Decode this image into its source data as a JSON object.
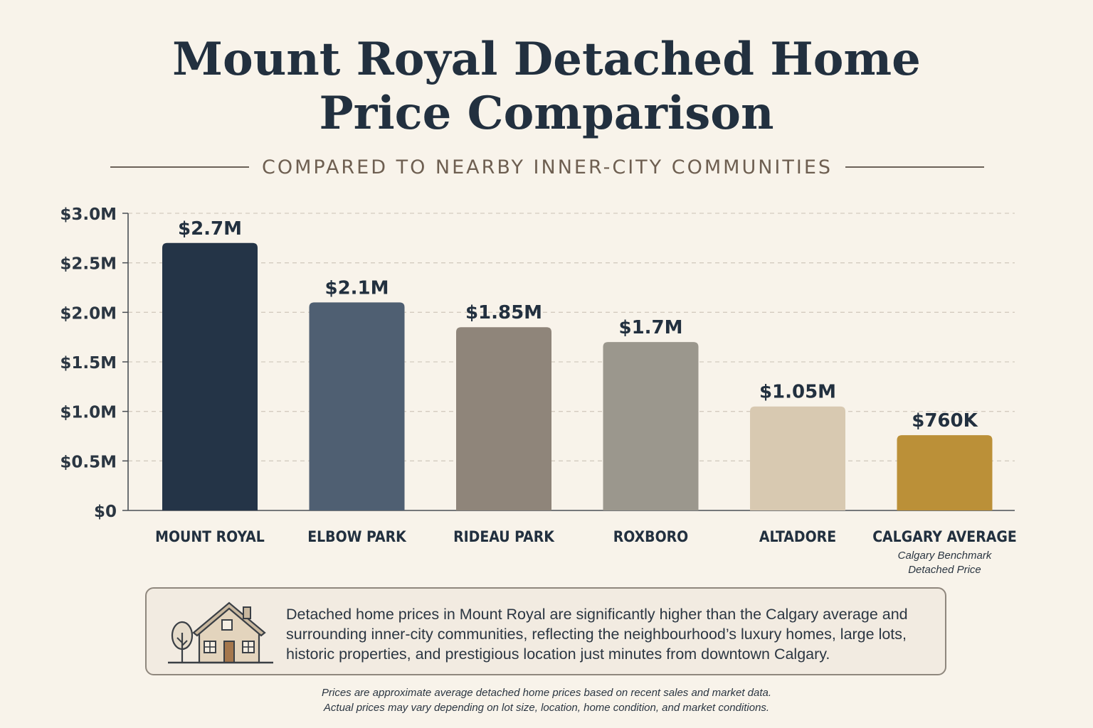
{
  "header": {
    "title_line1": "Mount Royal Detached Home",
    "title_line2": "Price Comparison",
    "subtitle": "COMPARED TO NEARBY INNER-CITY COMMUNITIES"
  },
  "chart_data": {
    "type": "bar",
    "categories": [
      "MOUNT ROYAL",
      "ELBOW PARK",
      "RIDEAU PARK",
      "ROXBORO",
      "ALTADORE",
      "CALGARY AVERAGE"
    ],
    "category_notes": [
      "",
      "",
      "",
      "",
      "",
      "Calgary Benchmark\nDetached Price"
    ],
    "values": [
      2700000,
      2100000,
      1850000,
      1700000,
      1050000,
      760000
    ],
    "value_labels": [
      "$2.7M",
      "$2.1M",
      "$1.85M",
      "$1.7M",
      "$1.05M",
      "$760K"
    ],
    "bar_colors": [
      "#243447",
      "#4f5f72",
      "#8f857a",
      "#9b978d",
      "#d8c9b1",
      "#bb9038"
    ],
    "ylim": [
      0,
      3000000
    ],
    "yticks": [
      0,
      500000,
      1000000,
      1500000,
      2000000,
      2500000,
      3000000
    ],
    "ytick_labels": [
      "$0",
      "$0.5M",
      "$1.0M",
      "$1.5M",
      "$2.0M",
      "$2.5M",
      "$3.0M"
    ],
    "grid": true,
    "xlabel": "",
    "ylabel": ""
  },
  "info": {
    "icon": "house-icon",
    "text": "Detached home prices in Mount Royal are significantly higher than the Calgary average and surrounding inner-city communities, reflecting the neighbourhood’s luxury homes, large lots, historic properties, and prestigious location just minutes from downtown Calgary."
  },
  "footnote": {
    "line1": "Prices are approximate average detached home prices based on recent sales and market data.",
    "line2": "Actual prices may vary depending on lot size, location, home condition, and market conditions."
  },
  "colors": {
    "background": "#f8f3ea",
    "title": "#22303f",
    "subtitle": "#6e5f51"
  }
}
